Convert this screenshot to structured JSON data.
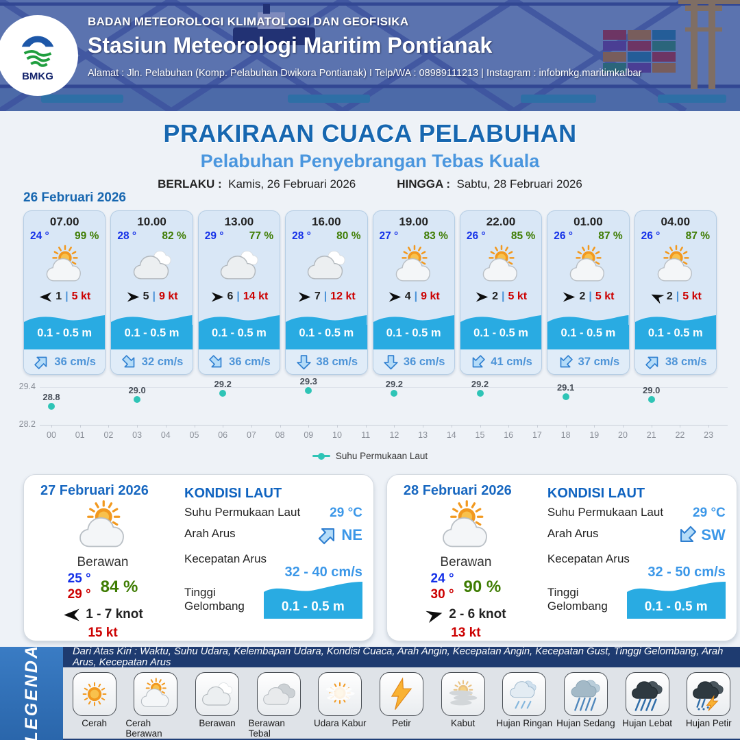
{
  "header": {
    "org": "BADAN METEOROLOGI KLIMATOLOGI DAN GEOFISIKA",
    "station": "Stasiun Meteorologi Maritim Pontianak",
    "address": "Alamat : Jln. Pelabuhan (Komp. Pelabuhan Dwikora Pontianak) I Telp/WA : 08989111213 | Instagram : infobmkg.maritimkalbar",
    "logo_label": "BMKG"
  },
  "title": {
    "main": "PRAKIRAAN CUACA PELABUHAN",
    "subtitle": "Pelabuhan Penyebrangan Tebas Kuala",
    "berlaku_label": "BERLAKU :",
    "berlaku_value": "Kamis, 26 Februari 2026",
    "hingga_label": "HINGGA :",
    "hingga_value": "Sabtu, 28 Februari 2026"
  },
  "labels": {
    "wind_sep": "|"
  },
  "sea_labels": {
    "kondisi_laut": "KONDISI LAUT",
    "sst": "Suhu Permukaan Laut",
    "arah_arus": "Arah Arus",
    "kecepatan_arus": "Kecepatan Arus",
    "tinggi_gelombang": "Tinggi Gelombang"
  },
  "day1": {
    "date": "26 Februari 2026",
    "cards": [
      {
        "time": "07.00",
        "temp": "24 °",
        "rh": "99 %",
        "icon": "cerah-berawan",
        "wind_deg": 180,
        "wind": "1",
        "gust": "5 kt",
        "wave": "0.1 - 0.5 m",
        "current_deg": 45,
        "current": "36 cm/s"
      },
      {
        "time": "10.00",
        "temp": "28 °",
        "rh": "82 %",
        "icon": "berawan",
        "wind_deg": 0,
        "wind": "5",
        "gust": "9 kt",
        "wave": "0.1 - 0.5 m",
        "current_deg": 135,
        "current": "32 cm/s"
      },
      {
        "time": "13.00",
        "temp": "29 °",
        "rh": "77 %",
        "icon": "berawan",
        "wind_deg": 0,
        "wind": "6",
        "gust": "14 kt",
        "wave": "0.1 - 0.5 m",
        "current_deg": 135,
        "current": "36 cm/s"
      },
      {
        "time": "16.00",
        "temp": "28 °",
        "rh": "80 %",
        "icon": "berawan",
        "wind_deg": 0,
        "wind": "7",
        "gust": "12 kt",
        "wave": "0.1 - 0.5 m",
        "current_deg": 180,
        "current": "38 cm/s"
      },
      {
        "time": "19.00",
        "temp": "27 °",
        "rh": "83 %",
        "icon": "cerah-berawan",
        "wind_deg": 0,
        "wind": "4",
        "gust": "9 kt",
        "wave": "0.1 - 0.5 m",
        "current_deg": 180,
        "current": "36 cm/s"
      },
      {
        "time": "22.00",
        "temp": "26 °",
        "rh": "85 %",
        "icon": "cerah-berawan",
        "wind_deg": 0,
        "wind": "2",
        "gust": "5 kt",
        "wave": "0.1 - 0.5 m",
        "current_deg": 225,
        "current": "41 cm/s"
      },
      {
        "time": "01.00",
        "temp": "26 °",
        "rh": "87 %",
        "icon": "cerah-berawan",
        "wind_deg": 0,
        "wind": "2",
        "gust": "5 kt",
        "wave": "0.1 - 0.5 m",
        "current_deg": 225,
        "current": "37 cm/s"
      },
      {
        "time": "04.00",
        "temp": "26 °",
        "rh": "87 %",
        "icon": "cerah-berawan",
        "wind_deg": 205,
        "wind": "2",
        "gust": "5 kt",
        "wave": "0.1 - 0.5 m",
        "current_deg": 45,
        "current": "38 cm/s"
      }
    ]
  },
  "chart_data": {
    "type": "scatter",
    "x": [
      0,
      3,
      6,
      9,
      12,
      15,
      18,
      21
    ],
    "values": [
      28.8,
      29.0,
      29.2,
      29.3,
      29.2,
      29.2,
      29.1,
      29.0
    ],
    "x_ticks": [
      "00",
      "01",
      "02",
      "03",
      "04",
      "05",
      "06",
      "07",
      "08",
      "09",
      "10",
      "11",
      "12",
      "13",
      "14",
      "15",
      "16",
      "17",
      "18",
      "19",
      "20",
      "21",
      "22",
      "23"
    ],
    "y_ticks": [
      "29.4",
      "28.2"
    ],
    "ylim": [
      28.2,
      29.4
    ],
    "legend": "Suhu Permukaan Laut",
    "legend_position": "bottom-center",
    "grid": true,
    "point_color": "#2ec4b6"
  },
  "day_cards": [
    {
      "date": "27 Februari 2026",
      "icon": "cerah-berawan",
      "condition": "Berawan",
      "temp_min": "25 °",
      "temp_max": "29 °",
      "rh": "84 %",
      "wind_deg": 180,
      "wind_range": "1 - 7 knot",
      "gust": "15 kt",
      "sea": {
        "sst": "29 °C",
        "current_dir": "NE",
        "current_deg": 45,
        "current_speed": "32 - 40 cm/s",
        "wave": "0.1 - 0.5 m"
      }
    },
    {
      "date": "28 Februari 2026",
      "icon": "cerah-berawan",
      "condition": "Berawan",
      "temp_min": "24 °",
      "temp_max": "30 °",
      "rh": "90 %",
      "wind_deg": 345,
      "wind_range": "2 - 6 knot",
      "gust": "13 kt",
      "sea": {
        "sst": "29 °C",
        "current_dir": "SW",
        "current_deg": 225,
        "current_speed": "32 - 50 cm/s",
        "wave": "0.1 - 0.5 m"
      }
    }
  ],
  "legend": {
    "title": "LEGENDA",
    "description": "Dari Atas Kiri : Waktu, Suhu Udara, Kelembapan Udara, Kondisi Cuaca, Arah Angin, Kecepatan Angin, Kecepatan Gust, Tinggi Gelombang, Arah Arus, Kecepatan Arus",
    "items": [
      {
        "label": "Cerah",
        "icon": "cerah"
      },
      {
        "label": "Cerah Berawan",
        "icon": "cerah-berawan"
      },
      {
        "label": "Berawan",
        "icon": "berawan"
      },
      {
        "label": "Berawan Tebal",
        "icon": "berawan-tebal"
      },
      {
        "label": "Udara Kabur",
        "icon": "udara-kabur"
      },
      {
        "label": "Petir",
        "icon": "petir"
      },
      {
        "label": "Kabut",
        "icon": "kabut"
      },
      {
        "label": "Hujan Ringan",
        "icon": "hujan-ringan"
      },
      {
        "label": "Hujan Sedang",
        "icon": "hujan-sedang"
      },
      {
        "label": "Hujan Lebat",
        "icon": "hujan-lebat"
      },
      {
        "label": "Hujan Petir",
        "icon": "hujan-petir"
      }
    ]
  },
  "colors": {
    "title_blue": "#1767b0",
    "subtitle_blue": "#4a96de",
    "temp_blue": "#1430e8",
    "humidity_green": "#3e7c02",
    "gust_red": "#cc0000",
    "wave_cyan": "#29abe2",
    "current_blue": "#4d94d8",
    "chart_teal": "#2ec4b6",
    "legend_navy": "#1e3b70",
    "legend_blue": "#2e72b8"
  }
}
